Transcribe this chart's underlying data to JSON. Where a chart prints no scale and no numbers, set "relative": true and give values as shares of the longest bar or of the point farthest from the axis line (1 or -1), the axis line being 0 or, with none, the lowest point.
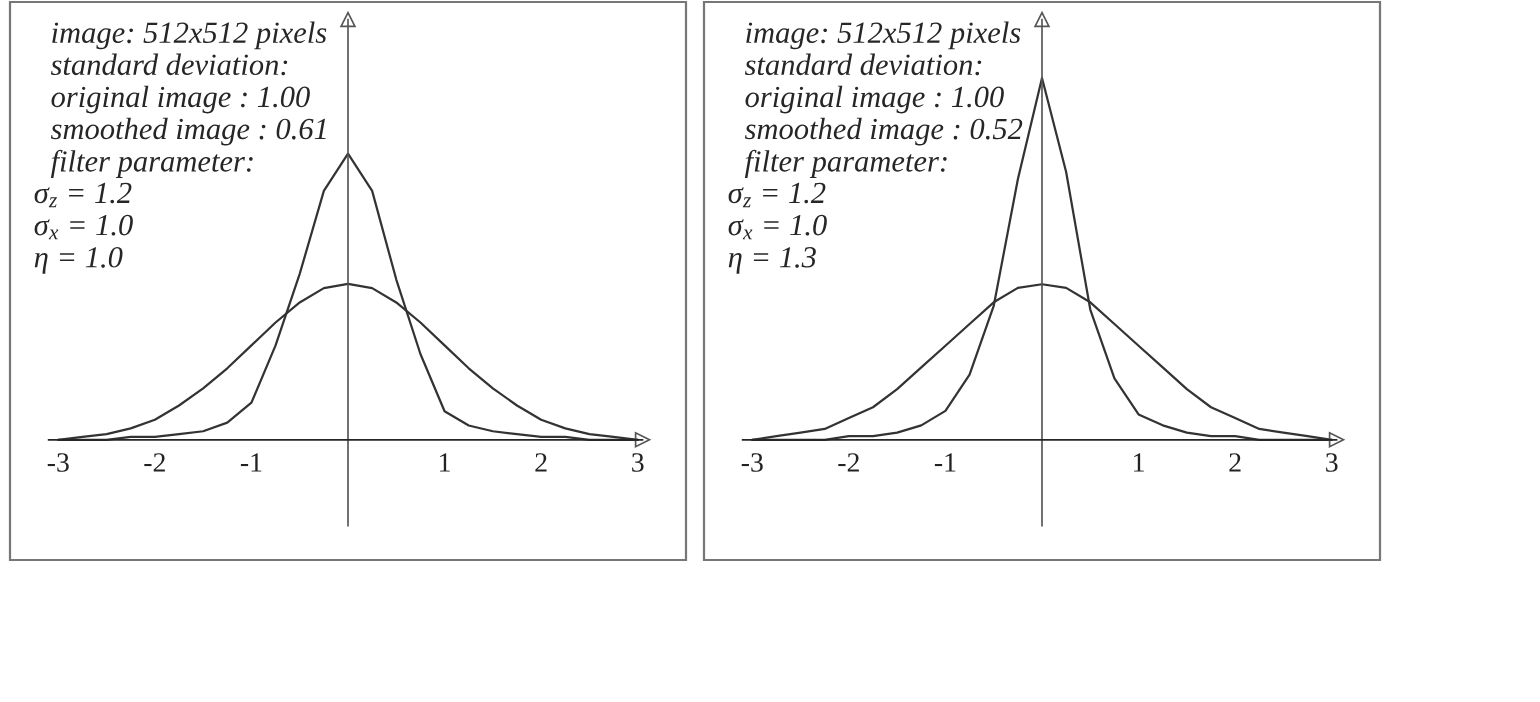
{
  "chart_data": [
    {
      "type": "line",
      "relative": true,
      "xlim": [
        -3.5,
        3.5
      ],
      "xticks": [
        -3,
        -2,
        -1,
        1,
        2,
        3
      ],
      "grid": false,
      "legend": false,
      "marker": "none",
      "line_style": "solid",
      "annotations": [
        "image: 512x512 pixels",
        "standard deviation:",
        "original image : 1.00",
        "smoothed image : 0.61",
        "filter parameter:",
        "σ$_{z}$ = 1.2",
        "σ$_{x}$ = 1.0",
        "η = 1.0"
      ],
      "x": [
        -3,
        -2.75,
        -2.5,
        -2.25,
        -2,
        -1.75,
        -1.5,
        -1.25,
        -1,
        -0.75,
        -0.5,
        -0.25,
        0,
        0.25,
        0.5,
        0.75,
        1,
        1.25,
        1.5,
        1.75,
        2,
        2.25,
        2.5,
        2.75,
        3
      ],
      "series": [
        {
          "color": "#333333",
          "values": [
            0,
            0.01,
            0.02,
            0.04,
            0.07,
            0.12,
            0.18,
            0.25,
            0.33,
            0.41,
            0.48,
            0.53,
            0.545,
            0.53,
            0.48,
            0.41,
            0.33,
            0.25,
            0.18,
            0.12,
            0.07,
            0.04,
            0.02,
            0.01,
            0
          ]
        },
        {
          "color": "#333333",
          "values": [
            0,
            0,
            0,
            0.01,
            0.01,
            0.02,
            0.03,
            0.06,
            0.13,
            0.33,
            0.58,
            0.87,
            1,
            0.87,
            0.56,
            0.3,
            0.1,
            0.05,
            0.03,
            0.02,
            0.01,
            0.01,
            0,
            0,
            0
          ]
        }
      ]
    },
    {
      "type": "line",
      "relative": true,
      "xlim": [
        -3.5,
        3.5
      ],
      "xticks": [
        -3,
        -2,
        -1,
        1,
        2,
        3
      ],
      "grid": false,
      "legend": false,
      "marker": "none",
      "line_style": "solid",
      "annotations": [
        "image: 512x512 pixels",
        "standard deviation:",
        "original image : 1.00",
        "smoothed image : 0.52",
        "filter parameter:",
        "σ$_{z}$ = 1.2",
        "σ$_{x}$ = 1.0",
        "η = 1.3"
      ],
      "x": [
        -3,
        -2.75,
        -2.5,
        -2.25,
        -2,
        -1.75,
        -1.5,
        -1.25,
        -1,
        -0.75,
        -0.5,
        -0.25,
        0,
        0.25,
        0.5,
        0.75,
        1,
        1.25,
        1.5,
        1.75,
        2,
        2.25,
        2.5,
        2.75,
        3
      ],
      "series": [
        {
          "color": "#333333",
          "values": [
            0,
            0.01,
            0.02,
            0.03,
            0.06,
            0.09,
            0.14,
            0.2,
            0.26,
            0.32,
            0.38,
            0.42,
            0.43,
            0.42,
            0.38,
            0.32,
            0.26,
            0.2,
            0.14,
            0.09,
            0.06,
            0.03,
            0.02,
            0.01,
            0
          ]
        },
        {
          "color": "#333333",
          "values": [
            0,
            0,
            0,
            0,
            0.01,
            0.01,
            0.02,
            0.04,
            0.08,
            0.18,
            0.37,
            0.72,
            1,
            0.74,
            0.36,
            0.17,
            0.07,
            0.04,
            0.02,
            0.01,
            0.01,
            0,
            0,
            0,
            0
          ]
        }
      ]
    }
  ]
}
